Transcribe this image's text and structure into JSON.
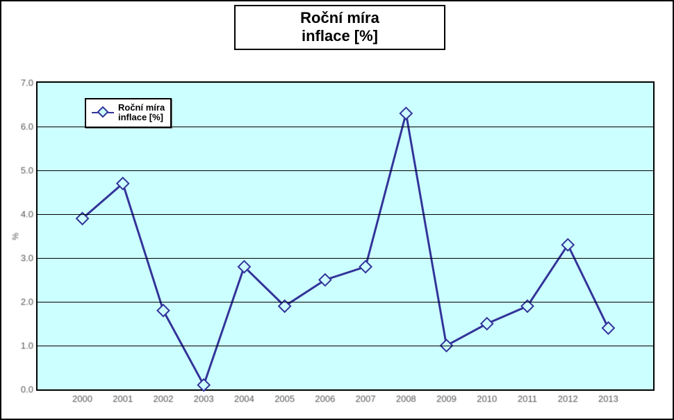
{
  "chart": {
    "type": "line",
    "title_line1": "Roční míra",
    "title_line2": "inflace [%]",
    "title_fontsize": 22,
    "background_color": "#ffffff",
    "plot_background_color": "#ccffff",
    "border_color": "#000000",
    "grid_color": "#000000",
    "series_color": "#333399",
    "marker_fill": "#ccffff",
    "marker_border": "#333399",
    "marker_shape": "diamond",
    "line_width": 3,
    "marker_size": 12,
    "y_axis_label": "%",
    "ylim_min": 0,
    "ylim_max": 7,
    "ytick_step": 1,
    "yticks": [
      0,
      1,
      2,
      3,
      4,
      5,
      6,
      7
    ],
    "ytick_labels": [
      "0.0",
      "1.0",
      "2.0",
      "3.0",
      "4.0",
      "5.0",
      "6.0",
      "7.0"
    ],
    "categories": [
      "2000",
      "2001",
      "2002",
      "2003",
      "2004",
      "2005",
      "2006",
      "2007",
      "2008",
      "2009",
      "2010",
      "2011",
      "2012",
      "2013"
    ],
    "values": [
      3.9,
      4.7,
      1.8,
      0.1,
      2.8,
      1.9,
      2.5,
      2.8,
      6.3,
      1.0,
      1.5,
      1.9,
      3.3,
      1.4
    ],
    "legend_label_line1": "Roční míra",
    "legend_label_line2": "inflace [%]"
  }
}
